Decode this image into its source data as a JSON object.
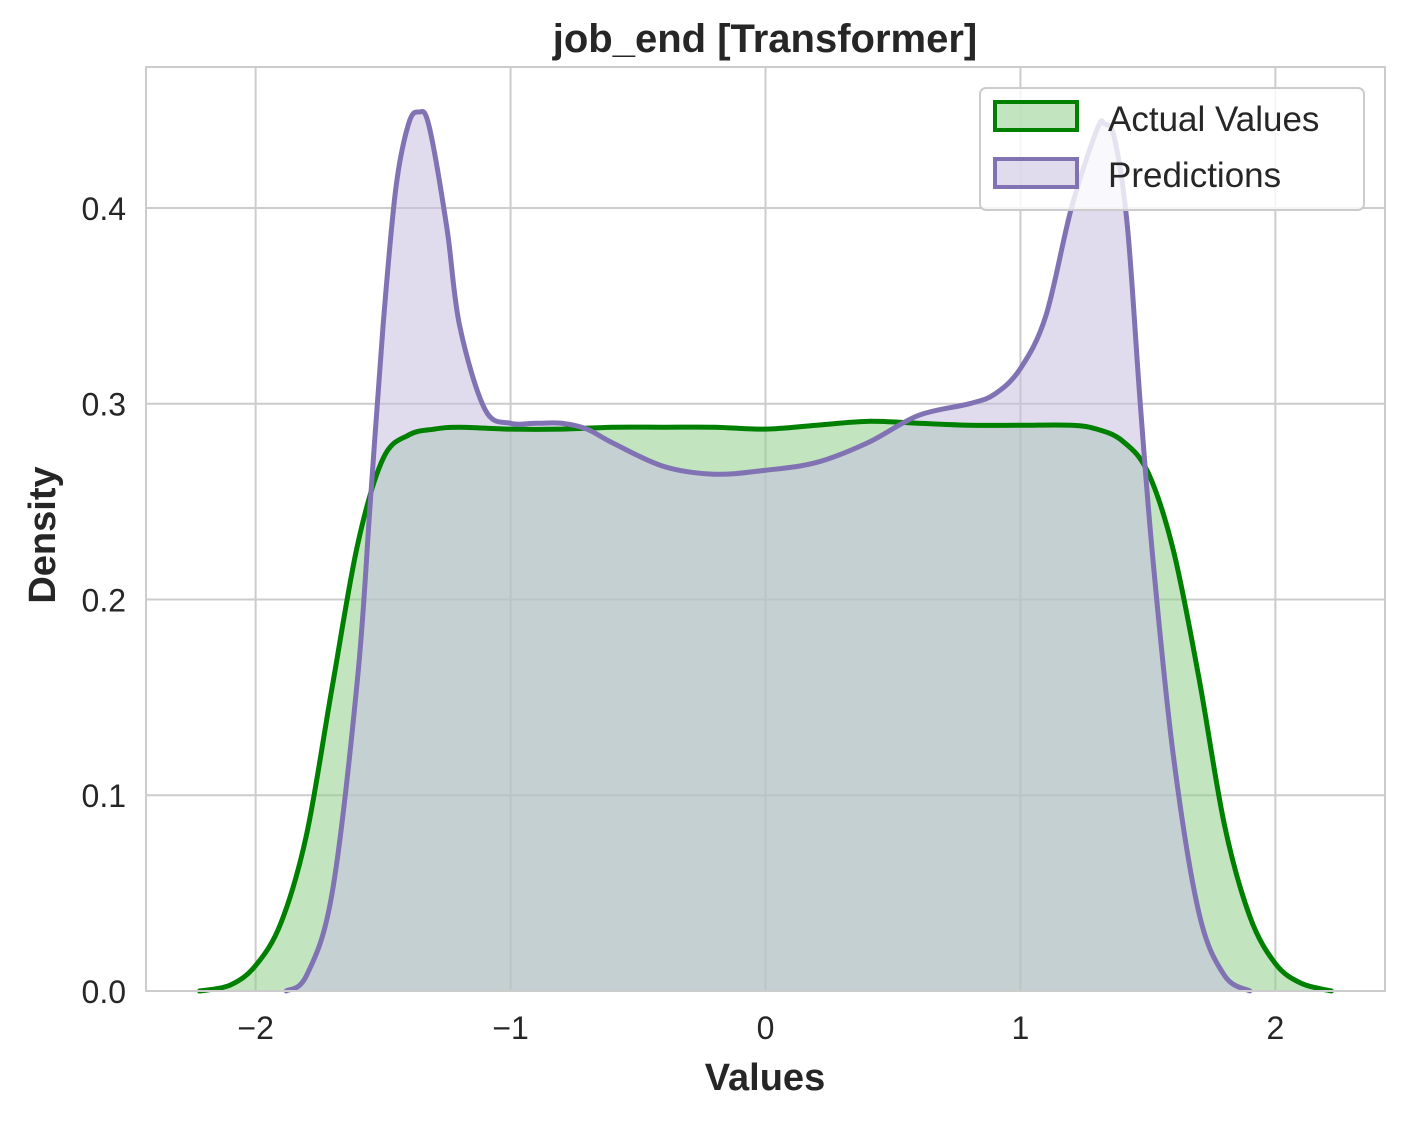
{
  "chart_data": {
    "type": "area",
    "title": "job_end [Transformer]",
    "xlabel": "Values",
    "ylabel": "Density",
    "xlim": [
      -2.43,
      2.43
    ],
    "ylim": [
      0.0,
      0.472
    ],
    "x_ticks": [
      -2,
      -1,
      0,
      1,
      2
    ],
    "x_tick_labels": [
      "−2",
      "−1",
      "0",
      "1",
      "2"
    ],
    "y_ticks": [
      0.0,
      0.1,
      0.2,
      0.3,
      0.4
    ],
    "y_tick_labels": [
      "0.0",
      "0.1",
      "0.2",
      "0.3",
      "0.4"
    ],
    "grid": true,
    "legend_position": "top-right",
    "series": [
      {
        "name": "Actual Values",
        "line_color": "#008000",
        "fill_color": "#8fd08c",
        "fill_opacity": 0.55,
        "points": [
          [
            -2.22,
            0.0
          ],
          [
            -2.1,
            0.003
          ],
          [
            -2.0,
            0.013
          ],
          [
            -1.9,
            0.035
          ],
          [
            -1.8,
            0.08
          ],
          [
            -1.7,
            0.155
          ],
          [
            -1.6,
            0.228
          ],
          [
            -1.5,
            0.272
          ],
          [
            -1.4,
            0.284
          ],
          [
            -1.3,
            0.287
          ],
          [
            -1.2,
            0.288
          ],
          [
            -1.0,
            0.287
          ],
          [
            -0.8,
            0.287
          ],
          [
            -0.6,
            0.288
          ],
          [
            -0.4,
            0.288
          ],
          [
            -0.2,
            0.288
          ],
          [
            0.0,
            0.287
          ],
          [
            0.2,
            0.289
          ],
          [
            0.4,
            0.291
          ],
          [
            0.6,
            0.29
          ],
          [
            0.8,
            0.289
          ],
          [
            1.0,
            0.289
          ],
          [
            1.2,
            0.289
          ],
          [
            1.3,
            0.287
          ],
          [
            1.4,
            0.281
          ],
          [
            1.5,
            0.265
          ],
          [
            1.6,
            0.225
          ],
          [
            1.7,
            0.16
          ],
          [
            1.8,
            0.085
          ],
          [
            1.9,
            0.038
          ],
          [
            2.0,
            0.014
          ],
          [
            2.1,
            0.004
          ],
          [
            2.22,
            0.0
          ]
        ]
      },
      {
        "name": "Predictions",
        "line_color": "#8172b3",
        "fill_color": "#c6bfdf",
        "fill_opacity": 0.55,
        "points": [
          [
            -1.88,
            0.0
          ],
          [
            -1.8,
            0.008
          ],
          [
            -1.7,
            0.05
          ],
          [
            -1.6,
            0.16
          ],
          [
            -1.55,
            0.25
          ],
          [
            -1.5,
            0.34
          ],
          [
            -1.45,
            0.41
          ],
          [
            -1.4,
            0.443
          ],
          [
            -1.36,
            0.449
          ],
          [
            -1.32,
            0.442
          ],
          [
            -1.25,
            0.39
          ],
          [
            -1.2,
            0.34
          ],
          [
            -1.1,
            0.297
          ],
          [
            -1.0,
            0.29
          ],
          [
            -0.9,
            0.29
          ],
          [
            -0.8,
            0.29
          ],
          [
            -0.7,
            0.287
          ],
          [
            -0.6,
            0.28
          ],
          [
            -0.4,
            0.268
          ],
          [
            -0.2,
            0.264
          ],
          [
            0.0,
            0.266
          ],
          [
            0.2,
            0.27
          ],
          [
            0.4,
            0.28
          ],
          [
            0.6,
            0.294
          ],
          [
            0.8,
            0.3
          ],
          [
            0.9,
            0.305
          ],
          [
            1.0,
            0.318
          ],
          [
            1.1,
            0.345
          ],
          [
            1.2,
            0.4
          ],
          [
            1.3,
            0.44
          ],
          [
            1.33,
            0.443
          ],
          [
            1.37,
            0.435
          ],
          [
            1.42,
            0.39
          ],
          [
            1.47,
            0.3
          ],
          [
            1.52,
            0.22
          ],
          [
            1.6,
            0.12
          ],
          [
            1.7,
            0.04
          ],
          [
            1.8,
            0.008
          ],
          [
            1.9,
            0.0
          ]
        ]
      }
    ]
  }
}
